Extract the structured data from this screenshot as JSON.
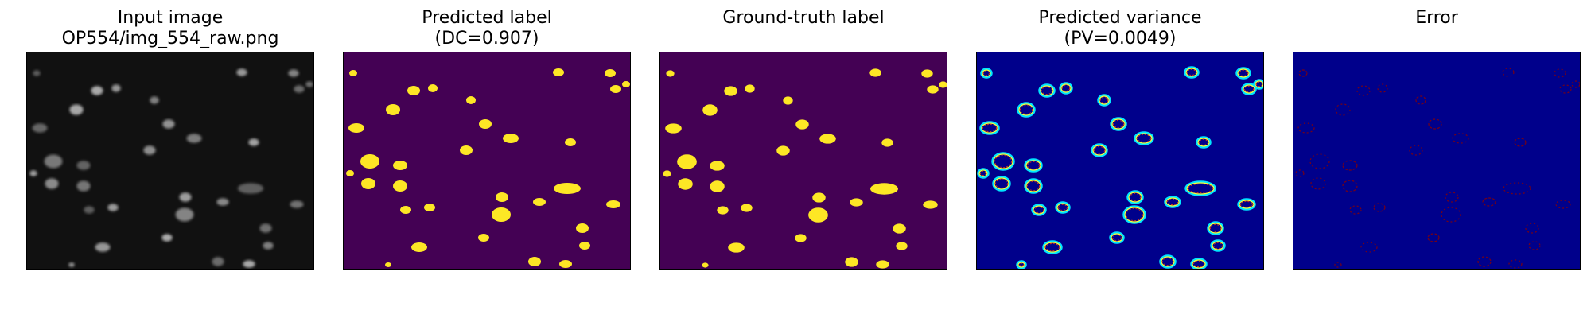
{
  "panels": [
    {
      "id": "input",
      "title": [
        "Input image",
        "OP554/img_554_raw.png"
      ]
    },
    {
      "id": "pred",
      "title": [
        "Predicted label",
        "(DC=0.907)"
      ]
    },
    {
      "id": "gt",
      "title": [
        "Ground-truth label",
        ""
      ]
    },
    {
      "id": "var",
      "title": [
        "Predicted variance",
        "(PV=0.0049)"
      ]
    },
    {
      "id": "err",
      "title": [
        "Error",
        ""
      ]
    }
  ],
  "colors": {
    "input_bg": "#111111",
    "input_blob": "#b5b5b5",
    "label_bg": "#440154",
    "label_blob": "#fde725",
    "var_bg": "#00008b",
    "var_ring_outer": "#00e5ff",
    "var_ring_mid": "#ffff33",
    "var_ring_inner": "#ff3b00",
    "err_bg": "#00008b",
    "err_ring": "#8b0000"
  }
}
